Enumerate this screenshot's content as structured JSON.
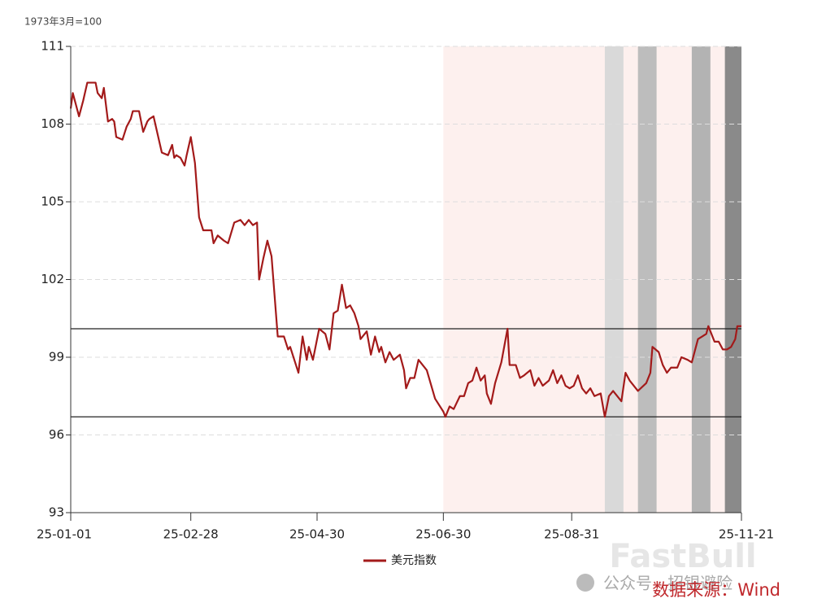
{
  "chart_data": {
    "type": "line",
    "y_label": "1973年3月=100",
    "ylim": [
      93,
      111
    ],
    "yticks": [
      93,
      96,
      99,
      102,
      105,
      108,
      111
    ],
    "xlim": [
      "25-01-01",
      "25-11-21"
    ],
    "xticks": [
      "25-01-01",
      "25-02-28",
      "25-04-30",
      "25-06-30",
      "25-08-31",
      "25-11-21"
    ],
    "grid": true,
    "legend": "bottom",
    "hlines": [
      100.1,
      96.7
    ],
    "hline_color": "#222222",
    "shaded_regions": [
      {
        "start": "25-06-30",
        "end": "25-11-21",
        "color": "#fdf0ee"
      },
      {
        "start": "25-09-16",
        "end": "25-09-25",
        "color": "#d9d9d9"
      },
      {
        "start": "25-10-02",
        "end": "25-10-11",
        "color": "#bdbdbd"
      },
      {
        "start": "25-10-28",
        "end": "25-11-06",
        "color": "#b3b3b3"
      },
      {
        "start": "25-11-13",
        "end": "25-11-21",
        "color": "#8a8a8a"
      }
    ],
    "series": [
      {
        "name": "美元指数",
        "color": "#a31a1a",
        "x": [
          "25-01-01",
          "25-01-02",
          "25-01-05",
          "25-01-07",
          "25-01-09",
          "25-01-13",
          "25-01-14",
          "25-01-16",
          "25-01-17",
          "25-01-19",
          "25-01-21",
          "25-01-22",
          "25-01-23",
          "25-01-26",
          "25-01-28",
          "25-01-30",
          "25-01-31",
          "25-02-03",
          "25-02-05",
          "25-02-07",
          "25-02-08",
          "25-02-10",
          "25-02-12",
          "25-02-14",
          "25-02-17",
          "25-02-19",
          "25-02-20",
          "25-02-21",
          "25-02-23",
          "25-02-25",
          "25-02-26",
          "25-02-28",
          "25-03-02",
          "25-03-04",
          "25-03-06",
          "25-03-10",
          "25-03-11",
          "25-03-13",
          "25-03-16",
          "25-03-18",
          "25-03-21",
          "25-03-24",
          "25-03-26",
          "25-03-28",
          "25-03-30",
          "25-04-01",
          "25-04-02",
          "25-04-04",
          "25-04-06",
          "25-04-08",
          "25-04-11",
          "25-04-14",
          "25-04-16",
          "25-04-17",
          "25-04-19",
          "25-04-21",
          "25-04-23",
          "25-04-25",
          "25-04-26",
          "25-04-28",
          "25-05-01",
          "25-05-04",
          "25-05-06",
          "25-05-08",
          "25-05-10",
          "25-05-12",
          "25-05-14",
          "25-05-16",
          "25-05-18",
          "25-05-20",
          "25-05-21",
          "25-05-24",
          "25-05-26",
          "25-05-28",
          "25-05-30",
          "25-05-31",
          "25-06-02",
          "25-06-04",
          "25-06-06",
          "25-06-09",
          "25-06-11",
          "25-06-12",
          "25-06-14",
          "25-06-16",
          "25-06-18",
          "25-06-20",
          "25-06-22",
          "25-06-26",
          "25-06-30",
          "25-07-01",
          "25-07-03",
          "25-07-05",
          "25-07-08",
          "25-07-10",
          "25-07-12",
          "25-07-14",
          "25-07-16",
          "25-07-18",
          "25-07-20",
          "25-07-21",
          "25-07-23",
          "25-07-25",
          "25-07-28",
          "25-07-31",
          "25-08-01",
          "25-08-04",
          "25-08-06",
          "25-08-08",
          "25-08-11",
          "25-08-13",
          "25-08-15",
          "25-08-17",
          "25-08-20",
          "25-08-22",
          "25-08-24",
          "25-08-26",
          "25-08-28",
          "25-08-30",
          "25-09-01",
          "25-09-03",
          "25-09-05",
          "25-09-07",
          "25-09-09",
          "25-09-11",
          "25-09-14",
          "25-09-16",
          "25-09-18",
          "25-09-20",
          "25-09-24",
          "25-09-26",
          "25-09-28",
          "25-10-02",
          "25-10-06",
          "25-10-08",
          "25-10-09",
          "25-10-12",
          "25-10-14",
          "25-10-16",
          "25-10-18",
          "25-10-21",
          "25-10-23",
          "25-10-26",
          "25-10-28",
          "25-10-31",
          "25-11-02",
          "25-11-04",
          "25-11-05",
          "25-11-08",
          "25-11-10",
          "25-11-12",
          "25-11-14",
          "25-11-16",
          "25-11-18",
          "25-11-19",
          "25-11-21"
        ],
        "values": [
          108.6,
          109.2,
          108.3,
          108.9,
          109.6,
          109.6,
          109.2,
          109.0,
          109.4,
          108.1,
          108.2,
          108.1,
          107.5,
          107.4,
          107.9,
          108.2,
          108.5,
          108.5,
          107.7,
          108.1,
          108.2,
          108.3,
          107.6,
          106.9,
          106.8,
          107.2,
          106.7,
          106.8,
          106.7,
          106.4,
          106.8,
          107.5,
          106.5,
          104.4,
          103.9,
          103.9,
          103.4,
          103.7,
          103.5,
          103.4,
          104.2,
          104.3,
          104.1,
          104.3,
          104.1,
          104.2,
          102.0,
          102.8,
          103.5,
          102.9,
          99.8,
          99.8,
          99.3,
          99.4,
          98.9,
          98.4,
          99.8,
          98.9,
          99.4,
          98.9,
          100.1,
          99.9,
          99.3,
          100.7,
          100.8,
          101.8,
          100.9,
          101.0,
          100.7,
          100.2,
          99.7,
          100.0,
          99.1,
          99.8,
          99.2,
          99.4,
          98.8,
          99.2,
          98.9,
          99.1,
          98.5,
          97.8,
          98.2,
          98.2,
          98.9,
          98.7,
          98.5,
          97.4,
          96.9,
          96.7,
          97.1,
          97.0,
          97.5,
          97.5,
          98.0,
          98.1,
          98.6,
          98.1,
          98.3,
          97.6,
          97.2,
          98.0,
          98.8,
          100.1,
          98.7,
          98.7,
          98.2,
          98.3,
          98.5,
          97.9,
          98.2,
          97.9,
          98.1,
          98.5,
          98.0,
          98.3,
          97.9,
          97.8,
          97.9,
          98.3,
          97.8,
          97.6,
          97.8,
          97.5,
          97.6,
          96.7,
          97.5,
          97.7,
          97.3,
          98.4,
          98.1,
          97.7,
          98.0,
          98.4,
          99.4,
          99.2,
          98.7,
          98.4,
          98.6,
          98.6,
          99.0,
          98.9,
          98.8,
          99.7,
          99.8,
          99.9,
          100.2,
          99.6,
          99.6,
          99.3,
          99.3,
          99.4,
          99.7,
          100.2,
          100.2
        ]
      }
    ],
    "source": "数据来源：Wind",
    "watermarks": [
      "FastBull",
      "公众号 · 招银避险"
    ]
  }
}
